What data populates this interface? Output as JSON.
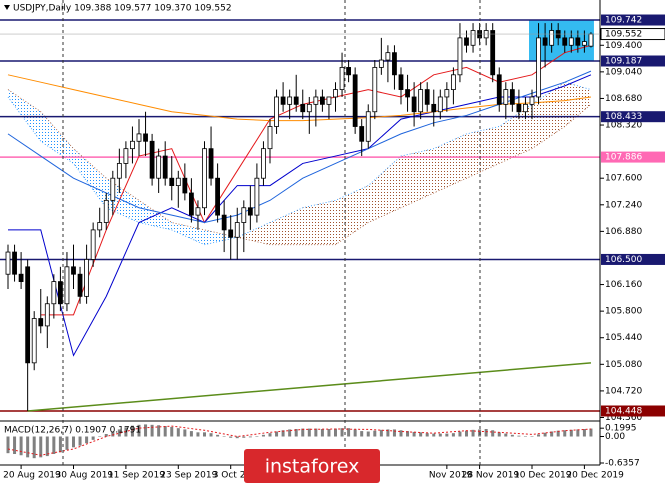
{
  "chart_data": {
    "type": "candlestick",
    "title": "USDJPY,Daily  109.388 109.577 109.370 109.552",
    "dates": [
      null,
      null,
      "20 Aug 2019",
      null,
      null,
      null,
      null,
      null,
      null,
      null,
      "30 Aug 2019",
      null,
      null,
      null,
      null,
      null,
      null,
      null,
      "11 Sep 2019",
      null,
      null,
      null,
      null,
      null,
      null,
      null,
      "23 Sep 2019",
      null,
      null,
      null,
      null,
      null,
      null,
      null,
      "3 Oct 2019",
      null,
      null,
      null,
      null,
      null,
      null,
      null,
      null,
      null,
      null,
      null,
      null,
      null,
      null,
      null,
      null,
      null,
      null,
      null,
      null,
      null,
      null,
      null,
      null,
      null,
      null,
      null,
      null,
      null,
      null,
      null,
      null,
      "Nov 2019",
      null,
      null,
      null,
      null,
      "28 Nov 2019",
      null,
      null,
      null,
      null,
      null,
      null,
      null,
      "10 Dec 2019",
      null,
      null,
      null,
      null,
      null,
      null,
      null,
      "20 Dec 2019",
      null
    ],
    "open": [
      106.3,
      106.6,
      106.3,
      106.4,
      105.1,
      105.7,
      105.6,
      105.9,
      106.2,
      105.9,
      106.4,
      106.3,
      106.0,
      106.5,
      106.9,
      107.0,
      107.3,
      107.6,
      107.8,
      108.0,
      108.1,
      108.2,
      108.1,
      107.6,
      107.9,
      107.6,
      107.5,
      107.6,
      107.4,
      107.1,
      107.2,
      108.0,
      107.6,
      107.1,
      106.9,
      106.8,
      107.0,
      107.2,
      107.1,
      107.6,
      108.0,
      108.3,
      108.7,
      108.6,
      108.7,
      108.6,
      108.5,
      108.6,
      108.7,
      108.6,
      108.7,
      108.8,
      109.1,
      109.0,
      108.3,
      108.1,
      108.5,
      109.1,
      109.2,
      109.3,
      109.0,
      108.8,
      108.7,
      108.5,
      108.8,
      108.6,
      108.5,
      108.7,
      108.8,
      109.0,
      109.5,
      109.4,
      109.6,
      109.5,
      109.6,
      109.0,
      108.6,
      108.8,
      108.6,
      108.5,
      108.6,
      108.7,
      109.5,
      109.4,
      109.6,
      109.5,
      109.4,
      109.5,
      109.4,
      109.388
    ],
    "high": [
      106.7,
      106.7,
      106.6,
      106.5,
      105.8,
      106.1,
      106.0,
      106.3,
      106.4,
      106.6,
      106.7,
      106.4,
      106.7,
      107.0,
      107.2,
      107.4,
      107.7,
      108.0,
      108.1,
      108.3,
      108.4,
      108.5,
      108.2,
      108.0,
      108.1,
      107.9,
      107.7,
      107.8,
      107.6,
      107.3,
      108.1,
      108.3,
      107.8,
      107.3,
      107.1,
      107.2,
      107.3,
      107.5,
      107.8,
      108.1,
      108.4,
      108.8,
      108.9,
      108.8,
      109.0,
      108.8,
      108.7,
      108.8,
      108.8,
      108.7,
      108.9,
      109.3,
      109.2,
      109.1,
      108.4,
      108.6,
      109.2,
      109.5,
      109.4,
      109.4,
      109.1,
      109.0,
      108.9,
      108.9,
      108.9,
      108.8,
      108.8,
      108.9,
      109.1,
      109.7,
      109.6,
      109.7,
      109.7,
      109.7,
      109.7,
      109.1,
      108.9,
      108.9,
      108.8,
      108.7,
      108.8,
      109.7,
      109.7,
      109.7,
      109.7,
      109.6,
      109.6,
      109.6,
      109.6,
      109.577
    ],
    "low": [
      106.1,
      106.2,
      106.1,
      104.448,
      105.0,
      105.5,
      105.3,
      105.7,
      105.8,
      105.8,
      106.1,
      105.9,
      105.9,
      106.4,
      106.8,
      106.9,
      107.1,
      107.4,
      107.6,
      107.8,
      107.9,
      107.9,
      107.5,
      107.4,
      107.5,
      107.3,
      107.2,
      107.3,
      107.0,
      106.9,
      107.1,
      107.5,
      107.0,
      106.6,
      106.5,
      106.5,
      106.6,
      106.9,
      107.0,
      107.5,
      107.8,
      108.2,
      108.5,
      108.4,
      108.5,
      108.4,
      108.2,
      108.3,
      108.5,
      108.4,
      108.5,
      108.7,
      108.9,
      108.2,
      107.9,
      108.0,
      108.4,
      109.0,
      108.9,
      108.8,
      108.6,
      108.5,
      108.3,
      108.4,
      108.5,
      108.3,
      108.4,
      108.5,
      108.6,
      108.9,
      109.3,
      109.3,
      109.4,
      109.4,
      108.9,
      108.5,
      108.4,
      108.5,
      108.4,
      108.4,
      108.4,
      108.6,
      109.1,
      109.3,
      109.4,
      109.3,
      109.3,
      109.3,
      109.3,
      109.37
    ],
    "close": [
      106.6,
      106.3,
      106.2,
      105.1,
      105.7,
      105.6,
      105.9,
      106.2,
      105.9,
      106.4,
      106.3,
      106.0,
      106.5,
      106.9,
      107.0,
      107.3,
      107.6,
      107.8,
      108.0,
      108.1,
      108.2,
      108.1,
      107.6,
      107.9,
      107.6,
      107.5,
      107.6,
      107.4,
      107.1,
      107.2,
      108.0,
      107.6,
      107.1,
      106.9,
      106.8,
      107.0,
      107.2,
      107.1,
      107.6,
      108.0,
      108.3,
      108.7,
      108.6,
      108.7,
      108.6,
      108.5,
      108.6,
      108.7,
      108.6,
      108.7,
      108.8,
      109.1,
      109.0,
      108.3,
      108.1,
      108.5,
      109.1,
      109.2,
      109.3,
      109.0,
      108.8,
      108.7,
      108.5,
      108.8,
      108.6,
      108.5,
      108.7,
      108.8,
      109.0,
      109.5,
      109.4,
      109.6,
      109.5,
      109.6,
      109.0,
      108.6,
      108.8,
      108.6,
      108.5,
      108.6,
      108.7,
      109.5,
      109.4,
      109.6,
      109.5,
      109.4,
      109.5,
      109.4,
      109.45,
      109.552
    ],
    "price": 109.552,
    "ylim": [
      104.326,
      110.013
    ],
    "yticks": [
      {
        "value": 109.4,
        "label": "109.400"
      },
      {
        "value": 109.04,
        "label": "109.040"
      },
      {
        "value": 108.68,
        "label": "108.680"
      },
      {
        "value": 108.32,
        "label": "108.320"
      },
      {
        "value": 107.6,
        "label": "107.600"
      },
      {
        "value": 107.24,
        "label": "107.240"
      },
      {
        "value": 106.88,
        "label": "106.880"
      },
      {
        "value": 106.16,
        "label": "106.160"
      },
      {
        "value": 105.8,
        "label": "105.800"
      },
      {
        "value": 105.44,
        "label": "105.440"
      },
      {
        "value": 105.08,
        "label": "105.080"
      },
      {
        "value": 104.72,
        "label": "104.720"
      },
      {
        "value": 104.36,
        "label": "104.360"
      }
    ],
    "levels": [
      {
        "value": 109.742,
        "color": "#191970"
      },
      {
        "value": 109.187,
        "color": "#191970"
      },
      {
        "value": 108.433,
        "color": "#191970"
      },
      {
        "value": 107.886,
        "color": "#ff69b4"
      },
      {
        "value": {
          "value": 106.5,
          "label": "106.500"
        },
        "color": "#191970"
      },
      {
        "value": 104.448,
        "color": "#8b0000"
      }
    ],
    "zone_color": "#1eb4f0",
    "indicator_x": [
      0,
      5,
      10,
      15,
      20,
      25,
      30,
      35,
      40,
      45,
      50,
      55,
      60,
      65,
      70,
      75,
      80,
      85,
      89
    ],
    "indicators": [
      {
        "color": "#e41a1c",
        "values": [
          null,
          105.75,
          105.75,
          106.9,
          107.9,
          108.0,
          107.0,
          107.7,
          108.4,
          108.6,
          108.7,
          108.8,
          108.7,
          109.0,
          109.1,
          108.9,
          109.0,
          109.3,
          109.4
        ]
      },
      {
        "color": "#0000cd",
        "values": [
          106.9,
          106.9,
          105.2,
          106.0,
          107.0,
          107.2,
          107.0,
          107.5,
          107.5,
          107.8,
          107.9,
          108.0,
          108.4,
          108.5,
          108.6,
          108.7,
          108.7,
          108.85,
          109.0
        ]
      },
      {
        "color": "#ff8c00",
        "values": [
          109.0,
          108.9,
          108.8,
          108.7,
          108.6,
          108.5,
          108.45,
          108.4,
          108.38,
          108.38,
          108.4,
          108.42,
          108.45,
          108.5,
          108.55,
          108.6,
          108.62,
          108.65,
          108.7
        ]
      },
      {
        "color": "#1e64dc",
        "values": [
          108.2,
          107.9,
          107.6,
          107.4,
          107.2,
          107.1,
          107.0,
          107.1,
          107.3,
          107.6,
          107.8,
          108.0,
          108.2,
          108.35,
          108.45,
          108.6,
          108.75,
          108.9,
          109.05
        ]
      }
    ],
    "cloud": {
      "span_a": [
        108.7,
        108.1,
        107.8,
        107.2,
        107.0,
        106.9,
        106.7,
        106.8,
        107.0,
        107.2,
        107.3,
        107.5,
        107.9,
        108.0,
        108.2,
        108.3,
        108.6,
        108.9,
        108.8
      ],
      "span_b": [
        108.8,
        108.5,
        108.0,
        107.6,
        107.3,
        107.0,
        106.9,
        106.8,
        106.7,
        106.7,
        106.7,
        107.0,
        107.2,
        107.4,
        107.6,
        107.8,
        108.0,
        108.3,
        108.6
      ],
      "colors": [
        "#1e90ff",
        "#a0522d"
      ]
    },
    "trendline": {
      "x": [
        3,
        89
      ],
      "values": [
        104.448,
        105.1
      ],
      "color": "#5b8c1a"
    },
    "macd": {
      "label": "MACD(12,26,7) 0.1907 0.1791",
      "ylim": [
        -0.6357,
        0.3
      ],
      "yticks": [
        0.1995,
        {
          "value": 0,
          "label": "0.00"
        },
        -0.6357
      ],
      "values": [
        -0.4,
        -0.42,
        -0.45,
        -0.5,
        -0.52,
        -0.5,
        -0.47,
        -0.42,
        -0.38,
        -0.32,
        -0.26,
        -0.22,
        -0.16,
        -0.08,
        0.0,
        0.06,
        0.12,
        0.17,
        0.22,
        0.26,
        0.28,
        0.29,
        0.28,
        0.27,
        0.25,
        0.23,
        0.2,
        0.17,
        0.13,
        0.1,
        0.1,
        0.08,
        0.04,
        0.0,
        -0.03,
        -0.04,
        -0.03,
        -0.02,
        0.0,
        0.04,
        0.08,
        0.12,
        0.15,
        0.17,
        0.18,
        0.19,
        0.19,
        0.19,
        0.18,
        0.18,
        0.19,
        0.2,
        0.2,
        0.17,
        0.13,
        0.12,
        0.14,
        0.16,
        0.17,
        0.17,
        0.15,
        0.13,
        0.11,
        0.1,
        0.08,
        0.07,
        0.07,
        0.07,
        0.08,
        0.12,
        0.14,
        0.16,
        0.17,
        0.18,
        0.15,
        0.1,
        0.07,
        0.04,
        0.02,
        0.01,
        0.0,
        0.05,
        0.09,
        0.12,
        0.14,
        0.15,
        0.16,
        0.17,
        0.18,
        0.1907
      ],
      "signal": [
        -0.3,
        -0.45,
        -0.3,
        0.0,
        0.2,
        0.25,
        0.15,
        0.0,
        0.1,
        0.17,
        0.18,
        0.17,
        0.12,
        0.08,
        0.14,
        0.1,
        0.05,
        0.14,
        0.1791
      ],
      "bar_color": "#808080",
      "signal_color": "#e41a1c"
    },
    "logo": "instaforex"
  }
}
